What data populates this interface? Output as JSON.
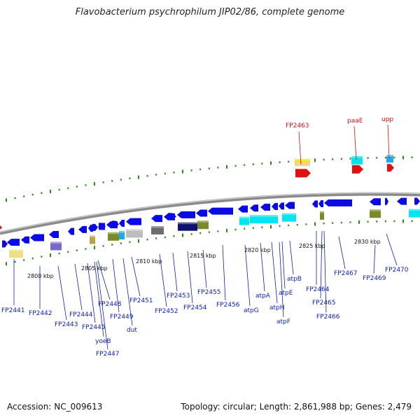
{
  "title": "Flavobacterium psychrophilum JIP02/86, complete genome",
  "footer": {
    "accession": "Accession: NC_009613",
    "topology": "Topology: circular; Length: 2,861,988 bp; Genes: 2,479"
  },
  "colors": {
    "cds": "#0a0ae6",
    "cds_label": "#0b1fb8",
    "rna": "#e01010",
    "rna_label": "#cc1111",
    "tick": "#2a8a1a",
    "backbone": "#8a8a8a"
  },
  "kbp_labels": [
    "2800 kbp",
    "2805 kbp",
    "2810 kbp",
    "2815 kbp",
    "2820 kbp",
    "2825 kbp",
    "2830 kbp"
  ],
  "bottom_labels": [
    "FP2441",
    "FP2442",
    "FP2443",
    "FP2444",
    "FP2445",
    "yoeB",
    "FP2447",
    "FP2448",
    "FP2449",
    "dut",
    "FP2451",
    "FP2452",
    "FP2453",
    "FP2454",
    "FP2455",
    "FP2456",
    "atpG",
    "atpA",
    "atpH",
    "atpF",
    "atpE",
    "atpB",
    "FP2464",
    "FP2465",
    "FP2466",
    "FP2467",
    "FP2469",
    "FP2470"
  ],
  "top_labels": [
    "FP2463",
    "paaE",
    "upp"
  ]
}
